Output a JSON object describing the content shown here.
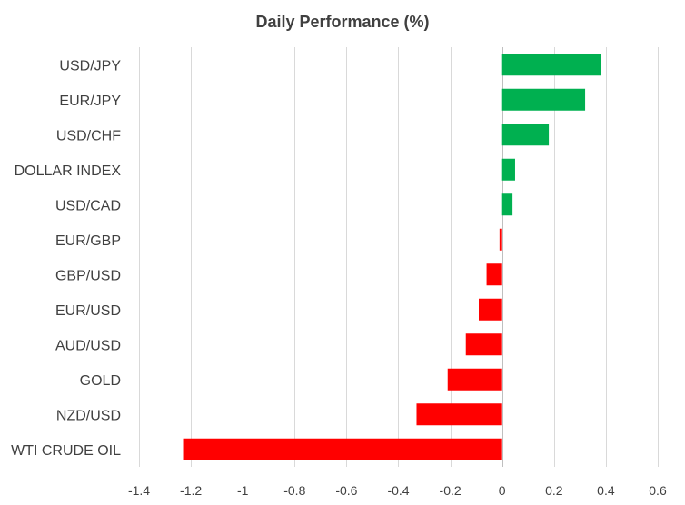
{
  "chart_data": {
    "type": "bar",
    "orientation": "horizontal",
    "title": "Daily Performance  (%)",
    "categories": [
      "USD/JPY",
      "EUR/JPY",
      "USD/CHF",
      "DOLLAR INDEX",
      "USD/CAD",
      "EUR/GBP",
      "GBP/USD",
      "EUR/USD",
      "AUD/USD",
      "GOLD",
      "NZD/USD",
      "WTI CRUDE OIL"
    ],
    "values": [
      0.38,
      0.32,
      0.18,
      0.05,
      0.04,
      -0.01,
      -0.06,
      -0.09,
      -0.14,
      -0.21,
      -0.33,
      -1.23
    ],
    "xlim": [
      -1.4,
      0.6
    ],
    "xticks": [
      -1.4,
      -1.2,
      -1,
      -0.8,
      -0.6,
      -0.4,
      -0.2,
      0,
      0.2,
      0.4,
      0.6
    ],
    "xtick_labels": [
      "-1.4",
      "-1.2",
      "-1",
      "-0.8",
      "-0.6",
      "-0.4",
      "-0.2",
      "0",
      "0.2",
      "0.4",
      "0.6"
    ],
    "grid": true,
    "legend": "none",
    "colors": {
      "positive": "#00b050",
      "negative": "#ff0000",
      "grid": "#d9d9d9",
      "text": "#404040"
    }
  }
}
